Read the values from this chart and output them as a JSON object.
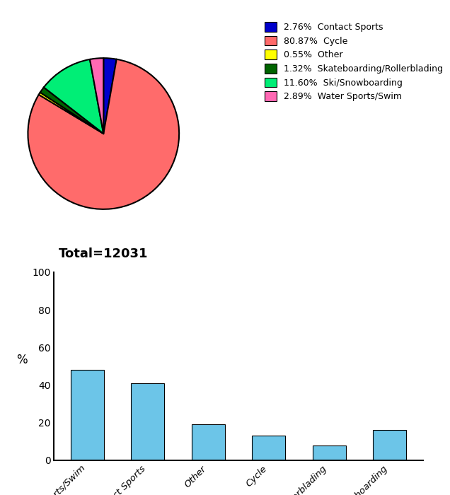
{
  "pie_labels": [
    "Contact Sports",
    "Cycle",
    "Other",
    "Skateboarding/Rollerblading",
    "Ski/Snowboarding",
    "Water Sports/Swim"
  ],
  "pie_values": [
    2.76,
    80.87,
    0.55,
    1.32,
    11.6,
    2.89
  ],
  "pie_colors": [
    "#0000cc",
    "#ff6b6b",
    "#ffff00",
    "#006400",
    "#00ee76",
    "#ff69b4"
  ],
  "pie_legend_labels": [
    "2.76%  Contact Sports",
    "80.87%  Cycle",
    "0.55%  Other",
    "1.32%  Skateboarding/Rollerblading",
    "11.60%  Ski/Snowboarding",
    "2.89%  Water Sports/Swim"
  ],
  "total_label": "Total=12031",
  "bar_categories": [
    "Water Sports/Swim",
    "Contact Sports",
    "Other",
    "Cycle",
    "Skateboarding/Rollerblading",
    "Ski/Snowboarding"
  ],
  "bar_values": [
    48,
    41,
    19,
    13,
    8,
    16
  ],
  "bar_color": "#6cc5e8",
  "bar_ylabel": "%",
  "bar_ylim": [
    0,
    100
  ],
  "bar_yticks": [
    0,
    20,
    40,
    60,
    80,
    100
  ],
  "background_color": "#ffffff"
}
